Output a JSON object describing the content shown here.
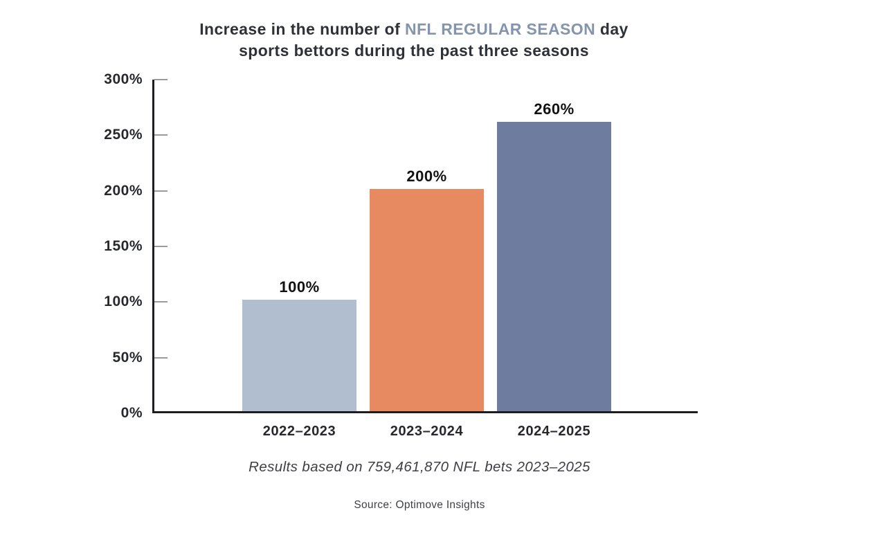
{
  "title": {
    "pre": "Increase in the number of",
    "accent": "NFL REGULAR SEASON",
    "post": "day",
    "line2": "sports bettors during the past three seasons"
  },
  "caption": "Results based on 759,461,870 NFL bets 2023–2025",
  "source": "Source: Optimove Insights",
  "colors": {
    "title_text": "#2e3138",
    "title_accent": "#8494ac",
    "axis": "#1d1d1f",
    "tick_mark": "#9a9a9a",
    "bar_2022_2023": "#b1bed0",
    "bar_2023_2024": "#e78a62",
    "bar_2024_2025": "#6d7c9f"
  },
  "chart_data": {
    "type": "bar",
    "title": "Increase in the number of NFL REGULAR SEASON day sports bettors during the past three seasons",
    "categories": [
      "2022–2023",
      "2023–2024",
      "2024–2025"
    ],
    "values": [
      100,
      200,
      260
    ],
    "data_labels": [
      "100%",
      "200%",
      "260%"
    ],
    "bar_colors": [
      "#b1bed0",
      "#e78a62",
      "#6d7c9f"
    ],
    "xlabel": "",
    "ylabel": "",
    "ylim": [
      0,
      300
    ],
    "yticks": [
      "0%",
      "50%",
      "100%",
      "150%",
      "200%",
      "250%",
      "300%"
    ],
    "grid": false,
    "legend": false,
    "annotation": "Results based on 759,461,870 NFL bets 2023–2025",
    "source": "Source: Optimove Insights"
  }
}
